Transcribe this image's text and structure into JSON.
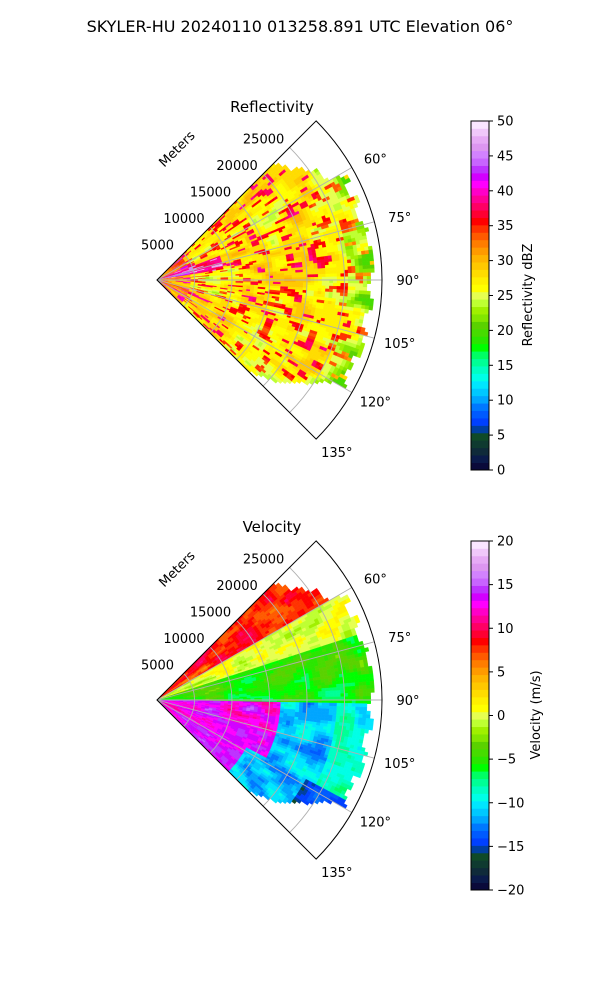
{
  "figure": {
    "suptitle": "SKYLER-HU  20240110  013258.891 UTC Elevation 06°"
  },
  "chart_data": [
    {
      "type": "heatmap",
      "projection": "polar-sector",
      "title": "Reflectivity",
      "radial_label": "Meters",
      "radial_ticks": [
        5000,
        10000,
        15000,
        20000,
        25000
      ],
      "radial_tick_labels": [
        "5000",
        "10000",
        "15000",
        "20000",
        "25000"
      ],
      "rmax": 30000,
      "theta_range_deg": [
        45,
        135
      ],
      "theta_ticks": [
        60,
        75,
        90,
        105,
        120,
        135
      ],
      "theta_tick_labels": [
        "60°",
        "75°",
        "90°",
        "105°",
        "120°",
        "135°"
      ],
      "grid": true,
      "colorbar": {
        "label": "Reflectivity dBZ",
        "range": [
          0,
          50
        ],
        "ticks": [
          0,
          5,
          10,
          15,
          20,
          25,
          30,
          35,
          40,
          45,
          50
        ],
        "tick_labels": [
          "0",
          "5",
          "10",
          "15",
          "20",
          "25",
          "30",
          "35",
          "40",
          "45",
          "50"
        ]
      },
      "field_pattern": "mostly 25–32 dBZ (yellow/orange) over the whole sector, scattered 33–38 dBZ red cells, 40–45 dBZ magenta near the radar, 18–23 dBZ green fringes at the far edge"
    },
    {
      "type": "heatmap",
      "projection": "polar-sector",
      "title": "Velocity",
      "radial_label": "Meters",
      "radial_ticks": [
        5000,
        10000,
        15000,
        20000,
        25000
      ],
      "radial_tick_labels": [
        "5000",
        "10000",
        "15000",
        "20000",
        "25000"
      ],
      "rmax": 30000,
      "theta_range_deg": [
        45,
        135
      ],
      "theta_ticks": [
        60,
        75,
        90,
        105,
        120,
        135
      ],
      "theta_tick_labels": [
        "60°",
        "75°",
        "90°",
        "105°",
        "120°",
        "135°"
      ],
      "grid": true,
      "colorbar": {
        "label": "Velocity (m/s)",
        "range": [
          -20,
          20
        ],
        "ticks": [
          -20,
          -15,
          -10,
          -5,
          0,
          5,
          10,
          15,
          20
        ],
        "tick_labels": [
          "−20",
          "−15",
          "−10",
          "−5",
          "0",
          "5",
          "10",
          "15",
          "20"
        ]
      },
      "field_pattern": "about +8 to +10 m/s (red/orange) near 50–60°, about 0 m/s (yellow) 60–72°, −3 to −8 m/s (green) 72–92°, +12 to +15 m/s (magenta) band near 92–118° close to the radar, −10 to −14 m/s (cyan) beyond, −15 m/s (blue) at far range near 130°"
    }
  ],
  "colormap": [
    "#0a0a3a",
    "#0a1a4a",
    "#0f2a3a",
    "#0f3a30",
    "#0f4a28",
    "#003fa0",
    "#0040ff",
    "#005aff",
    "#0078ff",
    "#00a5ff",
    "#00c8ff",
    "#00e6ff",
    "#00ffe6",
    "#00ffc3",
    "#00ff96",
    "#00ff64",
    "#00ff00",
    "#2ae600",
    "#46dc00",
    "#5ad200",
    "#82e600",
    "#a0f000",
    "#beff32",
    "#e6ff50",
    "#ffff00",
    "#fff000",
    "#ffdc00",
    "#ffc800",
    "#ffb400",
    "#ff9a00",
    "#ff7d00",
    "#ff5a00",
    "#ff3200",
    "#ff0000",
    "#ff0032",
    "#ff0064",
    "#ff0096",
    "#ff00c8",
    "#ff00ff",
    "#d200ff",
    "#be32ff",
    "#c864ff",
    "#d282ff",
    "#dc96f0",
    "#e6aaf5",
    "#f0c8fa",
    "#fae6ff"
  ]
}
